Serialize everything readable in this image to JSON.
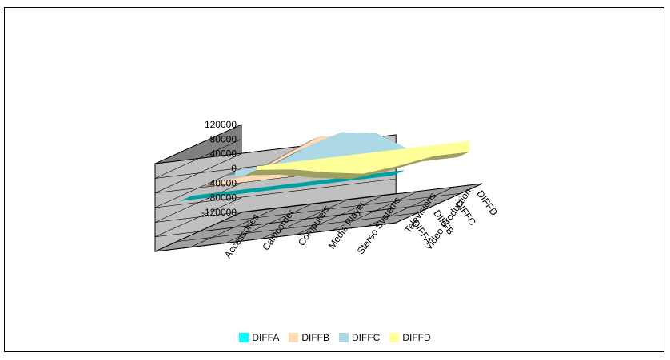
{
  "chart_data": {
    "type": "area",
    "projection": "3d",
    "categories": [
      "Accessories",
      "Camcorder",
      "Computers",
      "Media Player",
      "Stereo Systems",
      "Televisions",
      "Video Production"
    ],
    "series": [
      {
        "name": "DIFFA",
        "color": "#00ffff",
        "values": [
          0,
          0,
          0,
          0,
          0,
          0,
          0
        ]
      },
      {
        "name": "DIFFB",
        "color": "#ffdcb8",
        "values": [
          10000,
          15000,
          60000,
          100000,
          90000,
          25000,
          15000
        ]
      },
      {
        "name": "DIFFC",
        "color": "#add8e6",
        "values": [
          15000,
          15000,
          55000,
          85000,
          70000,
          10000,
          5000
        ]
      },
      {
        "name": "DIFFD",
        "color": "#ffff99",
        "values": [
          -10000,
          -20000,
          -40000,
          -55000,
          -45000,
          -30000,
          -30000
        ]
      }
    ],
    "yticks": [
      120000,
      80000,
      40000,
      0,
      -40000,
      -80000,
      -120000
    ],
    "ylim": [
      -120000,
      120000
    ],
    "grid": true,
    "legend_position": "bottom"
  },
  "legend": [
    {
      "label": "DIFFA",
      "color": "#00ffff"
    },
    {
      "label": "DIFFB",
      "color": "#ffdcb8"
    },
    {
      "label": "DIFFC",
      "color": "#add8e6"
    },
    {
      "label": "DIFFD",
      "color": "#ffff99"
    }
  ]
}
